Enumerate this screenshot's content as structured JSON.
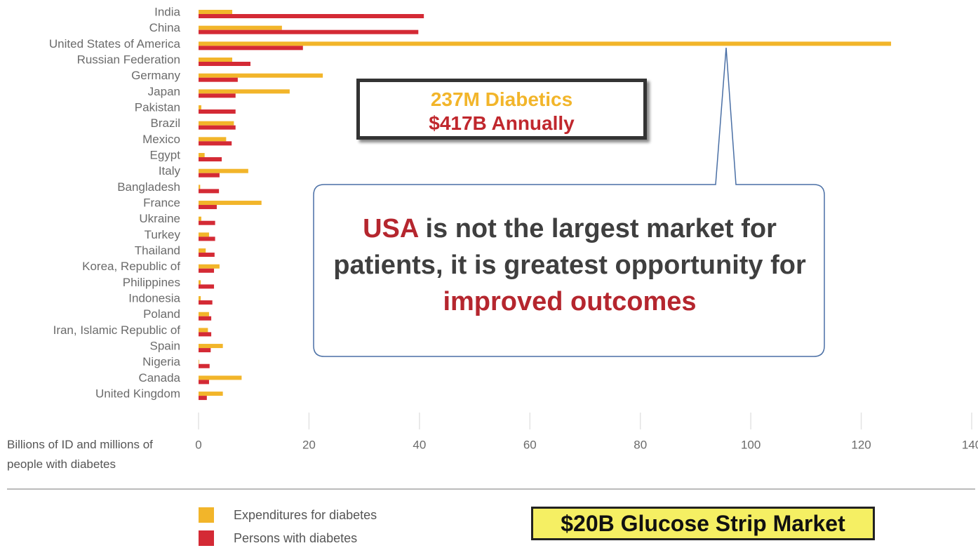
{
  "chart_data": {
    "type": "bar",
    "orientation": "horizontal",
    "categories": [
      "India",
      "China",
      "United States of America",
      "Russian Federation",
      "Germany",
      "Japan",
      "Pakistan",
      "Brazil",
      "Mexico",
      "Egypt",
      "Italy",
      "Bangladesh",
      "France",
      "Ukraine",
      "Turkey",
      "Thailand",
      "Korea, Republic of",
      "Philippines",
      "Indonesia",
      "Poland",
      "Iran, Islamic Republic of",
      "Spain",
      "Nigeria",
      "Canada",
      "United Kingdom"
    ],
    "series": [
      {
        "name": "Expenditures for diabetes",
        "color": "#f2b52a",
        "values": [
          6.1,
          15.1,
          125.4,
          6.1,
          22.5,
          16.5,
          0.5,
          6.4,
          5.0,
          1.1,
          9.0,
          0.3,
          11.4,
          0.5,
          1.9,
          1.3,
          3.8,
          0.4,
          0.4,
          1.9,
          1.7,
          4.4,
          0.1,
          7.8,
          4.4
        ]
      },
      {
        "name": "Persons with diabetes",
        "color": "#d42a35",
        "values": [
          40.8,
          39.8,
          18.9,
          9.4,
          7.1,
          6.7,
          6.7,
          6.7,
          6.0,
          4.2,
          3.8,
          3.7,
          3.3,
          3.0,
          3.0,
          2.9,
          2.8,
          2.8,
          2.5,
          2.3,
          2.3,
          2.2,
          2.0,
          1.9,
          1.5
        ]
      }
    ],
    "xlim": [
      0,
      140
    ],
    "xticks": [
      0,
      20,
      40,
      60,
      80,
      100,
      120,
      140
    ],
    "x_label": "Billions of ID and millions of people with diabetes",
    "grid": true,
    "annotations": [
      {
        "text": "237M Diabetics",
        "color": "#f2b52a"
      },
      {
        "text": "$417B Annually",
        "color": "#c0272d"
      },
      {
        "text": "$20B Glucose Strip Market"
      }
    ],
    "callout_segments": [
      {
        "text": "USA",
        "color": "#b5262e"
      },
      {
        "text": "is not the largest market for patients, it is greatest opportunity for",
        "color": "#3f3f3f"
      },
      {
        "text": "improved outcomes",
        "color": "#b5262e"
      }
    ]
  }
}
